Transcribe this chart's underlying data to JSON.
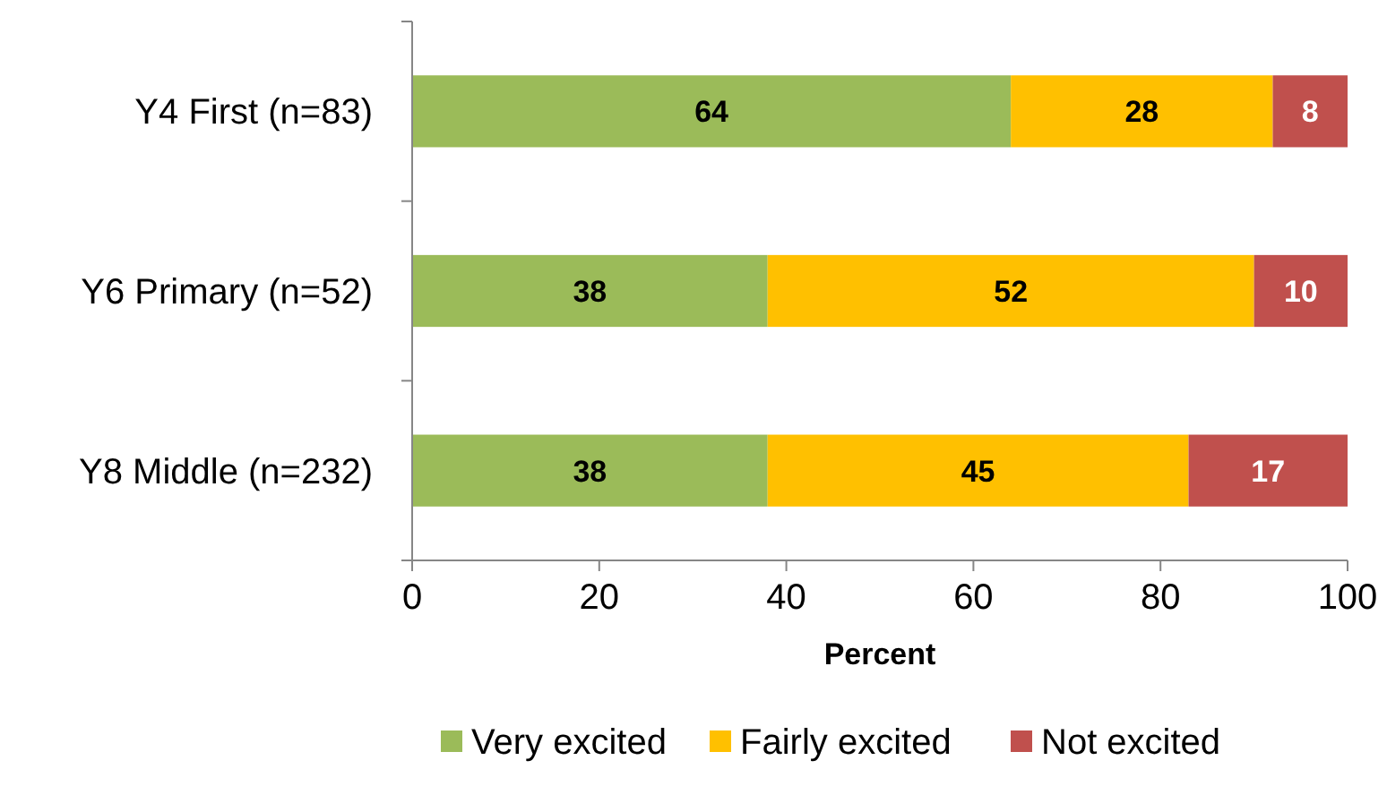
{
  "chart_data": {
    "type": "bar",
    "orientation": "horizontal",
    "stacked": true,
    "xlabel": "Percent",
    "categories": [
      "Y4 First (n=83)",
      "Y6 Primary (n=52)",
      "Y8 Middle (n=232)"
    ],
    "series": [
      {
        "name": "Very excited",
        "color": "#9bbb59",
        "values": [
          64,
          38,
          38
        ]
      },
      {
        "name": "Fairly excited",
        "color": "#ffc000",
        "values": [
          28,
          52,
          45
        ]
      },
      {
        "name": "Not excited",
        "color": "#c0504d",
        "values": [
          8,
          10,
          17
        ]
      }
    ],
    "xlim": [
      0,
      100
    ],
    "xticks": [
      0,
      20,
      40,
      60,
      80,
      100
    ],
    "data_labels": true,
    "grid": false,
    "legend": "bottom"
  }
}
